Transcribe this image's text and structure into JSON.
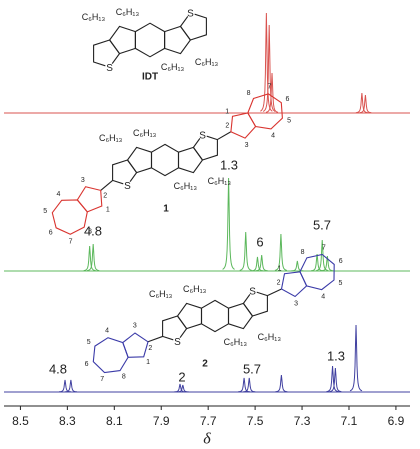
{
  "chart_data": [
    {
      "type": "line",
      "color": "#d9534f",
      "xlim": [
        8.57,
        6.84
      ],
      "ylim": [
        0,
        110
      ],
      "x": [
        7.452,
        7.44,
        7.428,
        7.045,
        7.03
      ],
      "values": [
        100,
        88,
        40,
        20,
        18
      ]
    },
    {
      "type": "line",
      "color": "#5cb85c",
      "xlim": [
        8.57,
        6.84
      ],
      "ylim": [
        0,
        110
      ],
      "x": [
        8.205,
        8.19,
        7.613,
        7.54,
        7.49,
        7.472,
        7.39,
        7.32,
        7.236,
        7.214,
        7.192
      ],
      "values": [
        25,
        27,
        93,
        39,
        14,
        16,
        37,
        10,
        17,
        31,
        15
      ],
      "annotations": [
        "4.8",
        "1.3",
        "6",
        "5.7"
      ]
    },
    {
      "type": "line",
      "color": "#4040a0",
      "xlim": [
        8.57,
        6.84
      ],
      "ylim": [
        0,
        110
      ],
      "x": [
        8.31,
        8.285,
        7.82,
        7.808,
        7.547,
        7.525,
        7.388,
        7.17,
        7.158,
        7.07
      ],
      "values": [
        12,
        12,
        8,
        7,
        14,
        14,
        17,
        26,
        24,
        67
      ],
      "annotations": [
        "4.8",
        "2",
        "5.7",
        "1.3"
      ],
      "xticks": [
        8.5,
        8.3,
        8.1,
        7.9,
        7.7,
        7.5,
        7.3,
        7.1,
        6.9
      ],
      "xlabel": "δ"
    }
  ],
  "structures": [
    {
      "name": "IDT",
      "color": "#111111",
      "substituents": [
        "C₆H₁₃",
        "C₆H₁₃",
        "C₆H₁₃",
        "C₆H₁₃"
      ],
      "heteroatoms": [
        "S",
        "S"
      ]
    },
    {
      "name": "1",
      "color": "#d9342f",
      "substituents": [
        "C₆H₁₃",
        "C₆H₁₃",
        "C₆H₁₃",
        "C₆H₁₃"
      ],
      "heteroatoms": [
        "S",
        "S"
      ],
      "azulenes": [
        [
          "1",
          "2",
          "3",
          "4",
          "5",
          "6",
          "7",
          "8"
        ],
        [
          "1",
          "2",
          "3",
          "4",
          "5",
          "6",
          "7",
          "8"
        ]
      ]
    },
    {
      "name": "2",
      "color": "#3a3aa8",
      "substituents": [
        "C₆H₁₃",
        "C₆H₁₃",
        "C₆H₁₃",
        "C₆H₁₃"
      ],
      "heteroatoms": [
        "S",
        "S"
      ],
      "azulenes": [
        [
          "1",
          "2",
          "3",
          "4",
          "5",
          "6",
          "7",
          "8"
        ],
        [
          "1",
          "2",
          "3",
          "4",
          "5",
          "6",
          "7",
          "8"
        ]
      ]
    }
  ]
}
